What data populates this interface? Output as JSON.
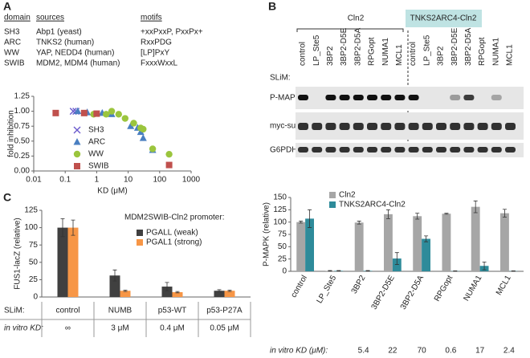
{
  "panel_labels": [
    "A",
    "B",
    "C"
  ],
  "table": {
    "columns": [
      "domain",
      "sources",
      "motifs"
    ],
    "rows": [
      [
        "SH3",
        "Abp1 (yeast)",
        "+xxPxxP, PxxPx+"
      ],
      [
        "ARC",
        "TNKS2 (human)",
        "RxxPDG"
      ],
      [
        "WW",
        "YAP, NEDD4 (human)",
        "[LP]PxY"
      ],
      [
        "SWIB",
        "MDM2, MDM4 (human)",
        "FxxxWxxL"
      ]
    ]
  },
  "blot": {
    "groups": [
      "Cln2",
      "TNKS2ARC4-Cln2"
    ],
    "lanes": [
      "control",
      "LP_Ste5",
      "3BP2",
      "3BP2-D5E",
      "3BP2-D5A",
      "RPGopt",
      "NUMA1",
      "MCL1"
    ],
    "slim_label": "SLiM:",
    "rows": [
      "P-MAPK",
      "myc-substrate",
      "G6PDH"
    ]
  },
  "chart_data": [
    {
      "type": "scatter",
      "xlabel": "KD (μM)",
      "ylabel": "fold inhibition",
      "xscale": "log",
      "xlim": [
        0.01,
        1000
      ],
      "xticks": [
        0.01,
        0.1,
        1,
        10,
        100,
        1000
      ],
      "ylim": [
        0,
        1.25
      ],
      "yticks": [
        {
          "value": 0,
          "label": "0.00"
        },
        {
          "value": 0.25,
          "label": "0.25"
        },
        {
          "value": 0.5,
          "label": "0.50"
        },
        {
          "value": 0.75,
          "label": "0.75"
        },
        {
          "value": 1,
          "label": "1.00"
        },
        {
          "value": 1.25,
          "label": "1.25"
        }
      ],
      "series": [
        {
          "name": "SH3",
          "marker": "x",
          "color": "#6a5acd",
          "x": [
            0.18,
            0.22
          ],
          "y": [
            1.0,
            1.0
          ]
        },
        {
          "name": "ARC",
          "marker": "triangle",
          "color": "#4a7fc1",
          "x": [
            0.25,
            0.5,
            1.5,
            3,
            12,
            20,
            25,
            30,
            60
          ],
          "y": [
            1.0,
            0.98,
            0.97,
            0.95,
            0.75,
            0.72,
            0.65,
            0.55,
            0.35
          ]
        },
        {
          "name": "WW",
          "marker": "circle",
          "color": "#9bc53d",
          "x": [
            0.8,
            2,
            3,
            5,
            8,
            15,
            25,
            30,
            60,
            200
          ],
          "y": [
            0.95,
            0.95,
            1.0,
            0.95,
            0.88,
            0.8,
            0.72,
            0.7,
            0.37,
            0.28
          ]
        },
        {
          "name": "SWIB",
          "marker": "square",
          "color": "#c0504d",
          "x": [
            0.05,
            0.4,
            1,
            200
          ],
          "y": [
            0.97,
            0.97,
            0.96,
            0.1
          ]
        }
      ]
    },
    {
      "type": "bar",
      "ylabel": "P-MAPK (relative)",
      "categories": [
        "control",
        "LP_Ste5",
        "3BP2",
        "3BP2-D5E",
        "3BP2-D5A",
        "RPGopt",
        "NUMA1",
        "MCL1"
      ],
      "ylim": [
        0,
        150
      ],
      "yticks": [
        0,
        25,
        50,
        75,
        100,
        125,
        150
      ],
      "series": [
        {
          "name": "Cln2",
          "color": "#a6a6a6",
          "values": [
            100,
            1,
            99,
            116,
            112,
            117,
            131,
            118
          ],
          "errors": [
            2,
            0.5,
            3,
            9,
            6,
            1,
            12,
            8
          ]
        },
        {
          "name": "TNKS2ARC4-Cln2",
          "color": "#2e8b9a",
          "values": [
            107,
            1,
            1,
            26,
            66,
            0.5,
            11,
            0.5
          ],
          "errors": [
            18,
            0.5,
            0.5,
            12,
            6,
            0.5,
            8,
            0.5
          ]
        }
      ],
      "kd_label": "in vitro KD (μM):",
      "kd": [
        null,
        null,
        5.4,
        22,
        70,
        0.6,
        17,
        2.4
      ]
    },
    {
      "type": "bar",
      "ylabel": "FUS1-lacZ (relative)",
      "annotation": "MDM2SWIB-Cln2 promoter:",
      "categories": [
        "control",
        "NUMB",
        "p53-WT",
        "p53-P27A"
      ],
      "ylim": [
        0,
        125
      ],
      "yticks": [
        0,
        25,
        50,
        75,
        100,
        125
      ],
      "series": [
        {
          "name": "PGALL (weak)",
          "color": "#404040",
          "values": [
            100,
            31,
            15,
            9
          ],
          "errors": [
            13,
            8,
            6,
            1.5
          ]
        },
        {
          "name": "PGAL1 (strong)",
          "color": "#f79646",
          "values": [
            100,
            9,
            7,
            9
          ],
          "errors": [
            11,
            1,
            1,
            1
          ]
        }
      ],
      "slim_label": "SLiM:",
      "kd_label": "in vitro KD:",
      "kd": [
        "∞",
        "3 μM",
        "0.4 μM",
        "0.05 μM"
      ]
    }
  ]
}
